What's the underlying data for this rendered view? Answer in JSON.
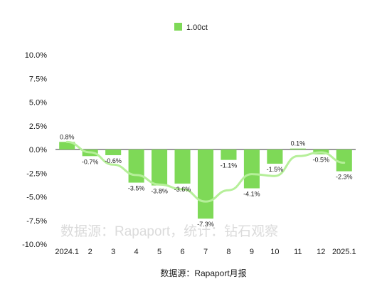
{
  "chart_data": {
    "type": "bar",
    "categories": [
      "2024.1",
      "2",
      "3",
      "4",
      "5",
      "6",
      "7",
      "8",
      "9",
      "10",
      "11",
      "12",
      "2025.1"
    ],
    "series": [
      {
        "name": "1.00ct",
        "values": [
          0.8,
          -0.7,
          -0.6,
          -3.5,
          -3.8,
          -3.6,
          -7.3,
          -1.1,
          -4.1,
          -1.5,
          0.1,
          -0.5,
          -2.3
        ],
        "labels": [
          "0.8%",
          "-0.7%",
          "-0.6%",
          "-3.5%",
          "-3.8%",
          "-3.6%",
          "-7.3%",
          "-1.1%",
          "-4.1%",
          "-1.5%",
          "0.1%",
          "-0.5%",
          "-2.3%"
        ]
      }
    ],
    "trend_line": [
      0.8,
      -0.3,
      -1.6,
      -2.7,
      -3.7,
      -4.2,
      -5.5,
      -4.3,
      -2.6,
      -2.8,
      -0.7,
      -0.3,
      -1.4
    ],
    "ylim": [
      -10,
      10
    ],
    "yticks": [
      10,
      7.5,
      5,
      2.5,
      0,
      -2.5,
      -5,
      -7.5,
      -10
    ],
    "ytick_labels": [
      "10.0%",
      "7.5%",
      "5.0%",
      "2.5%",
      "0.0%",
      "-2.5%",
      "-5.0%",
      "-7.5%",
      "-10.0%"
    ],
    "grid": false,
    "legend_position": "top",
    "colors": {
      "bar": "#7ed957",
      "trend": "#b6ef9a",
      "axis": "#333333"
    },
    "source_note": "数据源：Rapaport月报",
    "watermark": "数据源：Rapaport，统计：钻石观察"
  }
}
